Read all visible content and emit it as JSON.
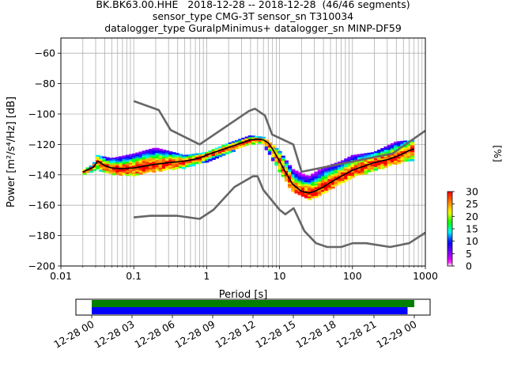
{
  "header": {
    "title_line1": "BK.BK63.00.HHE   2018-12-28 -- 2018-12-28  (46/46 segments)",
    "title_line2": "sensor_type CMG-3T sensor_sn T310034",
    "title_line3": "datalogger_type GuralpMinimus+ datalogger_sn MINP-DF59"
  },
  "chart_data": [
    {
      "type": "heatmap",
      "title": "BK.BK63.00.HHE   2018-12-28 -- 2018-12-28  (46/46 segments)",
      "xlabel": "Period [s]",
      "ylabel": "Power [m²/s⁴/Hz] [dB]",
      "x_scale": "log",
      "xlim": [
        0.01,
        1000
      ],
      "ylim": [
        -200,
        -50
      ],
      "x_ticks": [
        0.01,
        0.1,
        1,
        10,
        100,
        1000
      ],
      "x_tick_labels": [
        "0.01",
        "0.1",
        "1",
        "10",
        "100",
        "1000"
      ],
      "y_ticks": [
        -200,
        -180,
        -160,
        -140,
        -120,
        -100,
        -80,
        -60
      ],
      "y_tick_labels": [
        "−200",
        "−180",
        "−160",
        "−140",
        "−120",
        "−100",
        "−80",
        "−60"
      ],
      "grid": true,
      "colorbar": {
        "label": "[%]",
        "range": [
          0,
          30
        ],
        "ticks": [
          0,
          5,
          10,
          15,
          20,
          25,
          30
        ],
        "tick_labels": [
          "0",
          "5",
          "10",
          "15",
          "20",
          "25",
          "30"
        ]
      },
      "noise_models": [
        {
          "name": "high",
          "x": [
            0.1,
            0.22,
            0.32,
            0.8,
            3.8,
            4.6,
            6.3,
            7.9,
            15.4,
            20,
            354.8,
            1000
          ],
          "y": [
            -91.5,
            -97.4,
            -110.5,
            -120,
            -98,
            -96.5,
            -101,
            -113.5,
            -120,
            -138,
            -126,
            -111
          ]
        },
        {
          "name": "low",
          "x": [
            0.1,
            0.17,
            0.4,
            0.8,
            1.24,
            2.4,
            4.3,
            5,
            6,
            10,
            12,
            15.6,
            21.9,
            31.6,
            45,
            70,
            101,
            154,
            328,
            600,
            1000
          ],
          "y": [
            -168,
            -167,
            -167,
            -169,
            -163,
            -148,
            -141,
            -141,
            -150,
            -163,
            -166,
            -162,
            -177,
            -185,
            -187.5,
            -187.5,
            -185,
            -185,
            -187.5,
            -185,
            -178
          ]
        }
      ],
      "mean_curve": {
        "x": [
          0.02,
          0.025,
          0.028,
          0.032,
          0.04,
          0.05,
          0.07,
          0.1,
          0.15,
          0.2,
          0.3,
          0.5,
          0.8,
          1,
          1.5,
          2,
          3,
          4,
          5,
          6,
          7,
          8,
          10,
          12,
          15,
          20,
          25,
          30,
          40,
          50,
          70,
          100,
          150,
          200,
          300,
          400,
          500,
          600,
          700
        ],
        "y": [
          -138,
          -136,
          -135,
          -131,
          -134,
          -135.5,
          -136,
          -135.5,
          -134,
          -133,
          -132,
          -131,
          -129,
          -127,
          -124,
          -122,
          -119,
          -117,
          -116.5,
          -117,
          -119,
          -123,
          -131,
          -138,
          -146,
          -151,
          -152,
          -151,
          -148,
          -145,
          -141,
          -137,
          -134,
          -132,
          -130,
          -128,
          -126,
          -124,
          -123
        ]
      },
      "psd_band": {
        "x": [
          0.02,
          0.028,
          0.032,
          0.05,
          0.1,
          0.2,
          0.5,
          1,
          2,
          4,
          6,
          10,
          15,
          25,
          40,
          70,
          100,
          200,
          400,
          700
        ],
        "upper": [
          -137,
          -133,
          -127,
          -129,
          -126,
          -122,
          -127,
          -125,
          -119,
          -114,
          -115,
          -124,
          -136,
          -141,
          -135,
          -131,
          -127,
          -125,
          -118,
          -117
        ],
        "lower": [
          -139,
          -137,
          -136,
          -139,
          -140,
          -137,
          -135,
          -131,
          -125,
          -119,
          -119,
          -137,
          -150,
          -156,
          -152,
          -145,
          -141,
          -137,
          -132,
          -130
        ]
      }
    },
    {
      "type": "bar",
      "title": "",
      "x_tick_labels": [
        "12-28 00",
        "12-28 03",
        "12-28 06",
        "12-28 09",
        "12-28 12",
        "12-28 15",
        "12-28 18",
        "12-28 21",
        "12-29 00"
      ],
      "series": [
        {
          "color": "#008000",
          "start": "12-28 00",
          "end": "12-29 00"
        },
        {
          "color": "#0000ff",
          "start": "12-28 00",
          "end": "12-28 23:30"
        }
      ]
    }
  ]
}
